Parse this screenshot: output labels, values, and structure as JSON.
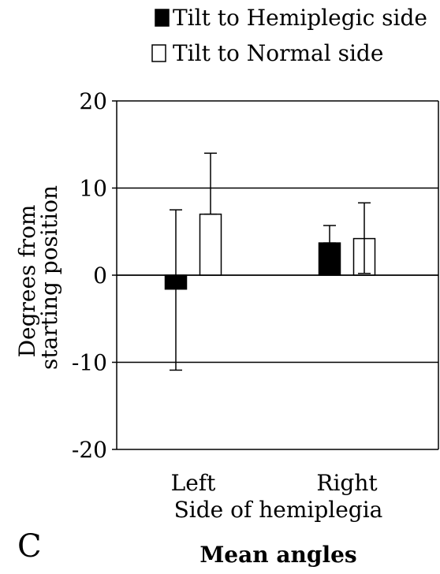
{
  "panel_label": "C",
  "caption": "Mean angles",
  "chart_data": {
    "type": "bar",
    "title": "",
    "xlabel": "Side of hemiplegia",
    "ylabel": [
      "Degrees from",
      "starting position"
    ],
    "categories": [
      "Left",
      "Right"
    ],
    "ylim": [
      -20,
      20
    ],
    "yticks": [
      20,
      10,
      0,
      -10,
      -20
    ],
    "grid": true,
    "legend_position": "top",
    "error_bars": true,
    "series": [
      {
        "name": "Tilt to Hemiplegic side",
        "fill": "#000000",
        "values": [
          -1.6,
          3.7
        ],
        "error_high": [
          7.5,
          5.7
        ],
        "error_low": [
          -10.9,
          3.7
        ]
      },
      {
        "name": "Tilt to Normal side",
        "fill": "#ffffff",
        "values": [
          7.0,
          4.2
        ],
        "error_high": [
          14.0,
          8.3
        ],
        "error_low": [
          7.0,
          0.2
        ]
      }
    ]
  }
}
